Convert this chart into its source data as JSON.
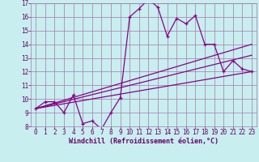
{
  "background_color": "#c8eef0",
  "grid_color": "#a878a8",
  "line_color": "#880088",
  "xlabel": "Windchill (Refroidissement éolien,°C)",
  "xlim": [
    -0.5,
    23.5
  ],
  "ylim": [
    8,
    17
  ],
  "yticks": [
    8,
    9,
    10,
    11,
    12,
    13,
    14,
    15,
    16,
    17
  ],
  "xticks": [
    0,
    1,
    2,
    3,
    4,
    5,
    6,
    7,
    8,
    9,
    10,
    11,
    12,
    13,
    14,
    15,
    16,
    17,
    18,
    19,
    20,
    21,
    22,
    23
  ],
  "line1_x": [
    0,
    1,
    2,
    3,
    4,
    5,
    6,
    7,
    8,
    9,
    10,
    11,
    12,
    13,
    14,
    15,
    16,
    17,
    18,
    19,
    20,
    21,
    22,
    23
  ],
  "line1_y": [
    9.3,
    9.8,
    9.8,
    9.0,
    10.3,
    8.2,
    8.4,
    7.8,
    9.0,
    10.1,
    16.0,
    16.6,
    17.3,
    16.7,
    14.6,
    15.9,
    15.5,
    16.1,
    14.0,
    14.0,
    12.0,
    12.8,
    12.2,
    12.0
  ],
  "line2_x": [
    0,
    23
  ],
  "line2_y": [
    9.3,
    14.0
  ],
  "line3_x": [
    0,
    23
  ],
  "line3_y": [
    9.3,
    13.2
  ],
  "line4_x": [
    0,
    23
  ],
  "line4_y": [
    9.3,
    12.0
  ],
  "tick_fontsize": 5.5,
  "xlabel_fontsize": 6.0,
  "tick_color": "#660066",
  "lw": 0.9
}
